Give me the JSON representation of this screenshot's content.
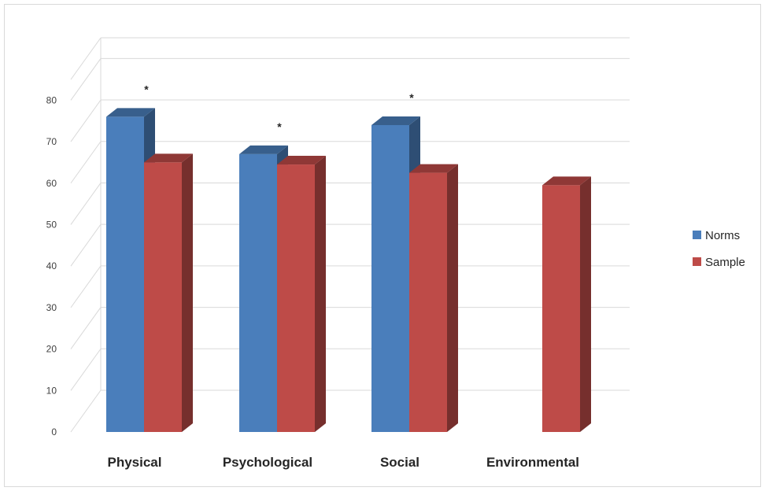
{
  "chart_data": {
    "type": "bar",
    "categories": [
      "Physical",
      "Psychological",
      "Social",
      "Environmental"
    ],
    "series": [
      {
        "name": "Norms",
        "values": [
          76.0,
          67.0,
          74.0,
          null
        ],
        "color": "#4a7ebb"
      },
      {
        "name": "Sample",
        "values": [
          65.0,
          64.5,
          62.5,
          59.5
        ],
        "color": "#be4b48"
      }
    ],
    "annotations": [
      "*",
      "*",
      "*",
      ""
    ],
    "yticks": [
      "0",
      "10",
      "20",
      "30",
      "40",
      "50",
      "60",
      "70",
      "80"
    ],
    "ylim": [
      0,
      85
    ],
    "grid": true,
    "legend": "right",
    "style": "3d-column"
  }
}
